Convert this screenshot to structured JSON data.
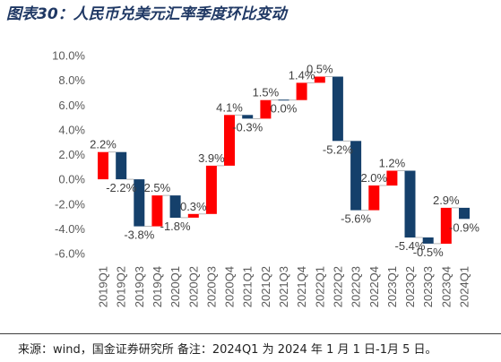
{
  "footer": {
    "source": "来源：wind，国金证券研究所 备注：2024Q1 为 2024 年 1 月 1 日-1月 5 日。"
  },
  "colors": {
    "title": "#1F3864",
    "increase": "#FF0000",
    "decrease": "#15406B",
    "connector": "#A6A6A6",
    "axis_text": "#595959",
    "data_label": "#404040",
    "footer_rule": "#3F3F3F"
  },
  "chart_data": {
    "type": "bar",
    "waterfall": true,
    "title": "图表30：人民币兑美元汇率季度环比变动",
    "categories": [
      "2019Q1",
      "2019Q2",
      "2019Q3",
      "2019Q4",
      "2020Q1",
      "2020Q2",
      "2020Q3",
      "2020Q4",
      "2021Q1",
      "2021Q2",
      "2021Q3",
      "2021Q4",
      "2022Q1",
      "2022Q2",
      "2022Q3",
      "2022Q4",
      "2023Q1",
      "2023Q2",
      "2023Q3",
      "2023Q4",
      "2024Q1"
    ],
    "values": [
      2.2,
      -2.2,
      -3.8,
      2.5,
      -1.8,
      0.3,
      3.9,
      4.1,
      -0.3,
      1.5,
      0.0,
      1.4,
      0.5,
      -5.2,
      -5.6,
      2.0,
      1.2,
      -5.4,
      -0.5,
      2.9,
      -0.9
    ],
    "data_labels": [
      "2.2%",
      "-2.2%",
      "-3.8%",
      "2.5%",
      "-1.8%",
      "0.3%",
      "3.9%",
      "4.1%",
      "-0.3%",
      "1.5%",
      "0.0%",
      "1.4%",
      "0.5%",
      "-5.2%",
      "-5.6%",
      "2.0%",
      "1.2%",
      "-5.4%",
      "-0.5%",
      "2.9%",
      "-0.9%"
    ],
    "ylim": [
      -6,
      10
    ],
    "yticks": [
      {
        "value": 10,
        "label": "10.0%"
      },
      {
        "value": 8,
        "label": "8.0%"
      },
      {
        "value": 6,
        "label": "6.0%"
      },
      {
        "value": 4,
        "label": "4.0%"
      },
      {
        "value": 2,
        "label": "2.0%"
      },
      {
        "value": 0,
        "label": "0.0%"
      },
      {
        "value": -2,
        "label": "-2.0%"
      },
      {
        "value": -4,
        "label": "-4.0%"
      },
      {
        "value": -6,
        "label": "-6.0%"
      }
    ],
    "grid": false
  }
}
